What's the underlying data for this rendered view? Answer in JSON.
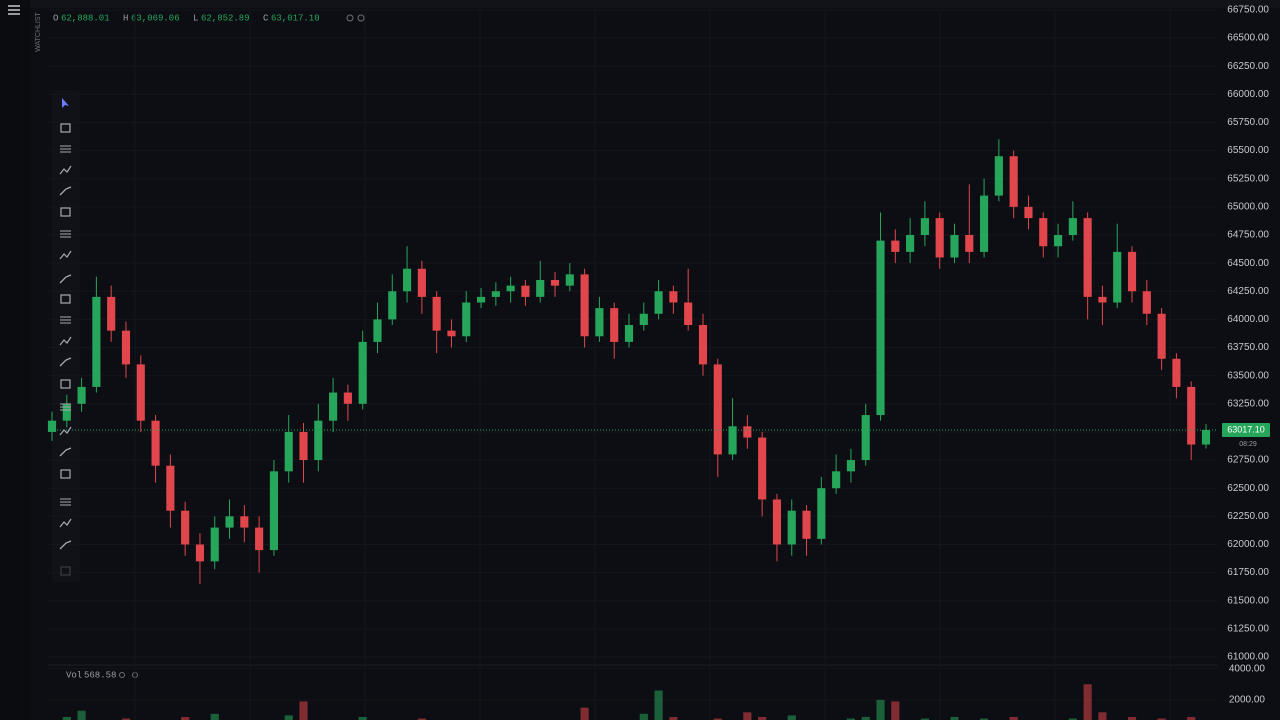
{
  "header": {
    "watchlist": "WATCHLIST",
    "ohlc": [
      {
        "key": "O",
        "value": "62,888.01"
      },
      {
        "key": "H",
        "value": "63,069.06"
      },
      {
        "key": "L",
        "value": "62,852.89"
      },
      {
        "key": "C",
        "value": "63,017.10"
      }
    ],
    "volume_label": "Vol",
    "volume_value": "568.58"
  },
  "chart_data": {
    "type": "candlestick",
    "up_color": "#26a65b",
    "down_color": "#e0464b",
    "grid": true,
    "ylim": [
      60929,
      66838
    ],
    "yticks": [
      {
        "value": 61000,
        "label": "61000.00"
      },
      {
        "value": 61250,
        "label": "61250.00"
      },
      {
        "value": 61500,
        "label": "61500.00"
      },
      {
        "value": 61750,
        "label": "61750.00"
      },
      {
        "value": 62000,
        "label": "62000.00"
      },
      {
        "value": 62250,
        "label": "62250.00"
      },
      {
        "value": 62500,
        "label": "62500.00"
      },
      {
        "value": 62750,
        "label": "62750.00"
      },
      {
        "value": 63000,
        "label": "63000.00"
      },
      {
        "value": 63250,
        "label": "63250.00"
      },
      {
        "value": 63500,
        "label": "63500.00"
      },
      {
        "value": 63750,
        "label": "63750.00"
      },
      {
        "value": 64000,
        "label": "64000.00"
      },
      {
        "value": 64250,
        "label": "64250.00"
      },
      {
        "value": 64500,
        "label": "64500.00"
      },
      {
        "value": 64750,
        "label": "64750.00"
      },
      {
        "value": 65000,
        "label": "65000.00"
      },
      {
        "value": 65250,
        "label": "65250.00"
      },
      {
        "value": 65500,
        "label": "65500.00"
      },
      {
        "value": 65750,
        "label": "65750.00"
      },
      {
        "value": 66000,
        "label": "66000.00"
      },
      {
        "value": 66250,
        "label": "66250.00"
      },
      {
        "value": 66500,
        "label": "66500.00"
      },
      {
        "value": 66750,
        "label": "66750.00"
      }
    ],
    "last_price": {
      "value": 63017.1,
      "label": "63017.10",
      "countdown": "08:29"
    },
    "open": [
      63000,
      63100,
      63250,
      63400,
      64200,
      63900,
      63600,
      63100,
      62700,
      62300,
      62000,
      61850,
      62150,
      62250,
      62150,
      61950,
      62650,
      63000,
      62750,
      63100,
      63350,
      63250,
      63800,
      64000,
      64250,
      64450,
      64200,
      63900,
      63850,
      64150,
      64200,
      64250,
      64300,
      64200,
      64350,
      64300,
      64400,
      63850,
      64100,
      63800,
      63950,
      64050,
      64250,
      64150,
      63950,
      63600,
      62800,
      63050,
      62950,
      62400,
      62000,
      62300,
      62050,
      62500,
      62650,
      62750,
      63150,
      64700,
      64600,
      64750,
      64900,
      64550,
      64750,
      64600,
      65100,
      65450,
      65000,
      64900,
      64650,
      64750,
      64900,
      64200,
      64150,
      64600,
      64250,
      64050,
      63650,
      63400,
      62888.01
    ],
    "high": [
      63180,
      63330,
      63480,
      64380,
      64300,
      63980,
      63680,
      63150,
      62800,
      62380,
      62100,
      62250,
      62400,
      62350,
      62250,
      62750,
      63150,
      63080,
      63250,
      63480,
      63420,
      63900,
      64150,
      64400,
      64650,
      64520,
      64250,
      64000,
      64250,
      64280,
      64330,
      64380,
      64350,
      64520,
      64420,
      64500,
      64450,
      64200,
      64150,
      64050,
      64150,
      64350,
      64300,
      64450,
      64050,
      63650,
      63300,
      63150,
      63000,
      62450,
      62400,
      62350,
      62600,
      62800,
      62850,
      63250,
      64950,
      64800,
      64900,
      65050,
      64950,
      64850,
      65200,
      65250,
      65600,
      65500,
      65100,
      64950,
      64850,
      65050,
      64950,
      64300,
      64850,
      64650,
      64350,
      64100,
      63700,
      63450,
      63069.06
    ],
    "low": [
      62920,
      63040,
      63180,
      63350,
      63800,
      63480,
      63000,
      62550,
      62150,
      61900,
      61650,
      61780,
      62050,
      62020,
      61750,
      61900,
      62550,
      62550,
      62650,
      63000,
      63100,
      63200,
      63700,
      63950,
      64150,
      64050,
      63700,
      63750,
      63800,
      64100,
      64120,
      64150,
      64120,
      64150,
      64200,
      64250,
      63750,
      63800,
      63650,
      63750,
      63900,
      64000,
      64050,
      63900,
      63500,
      62600,
      62750,
      62850,
      62250,
      61850,
      61900,
      61900,
      62000,
      62450,
      62550,
      62700,
      63100,
      64500,
      64500,
      64650,
      64450,
      64500,
      64500,
      64550,
      65050,
      64900,
      64800,
      64550,
      64550,
      64700,
      64000,
      63950,
      64100,
      64150,
      63950,
      63550,
      63300,
      62750,
      62852.89
    ],
    "close": [
      63100,
      63250,
      63400,
      64200,
      63900,
      63600,
      63100,
      62700,
      62300,
      62000,
      61850,
      62150,
      62250,
      62150,
      61950,
      62650,
      63000,
      62750,
      63100,
      63350,
      63250,
      63800,
      64000,
      64250,
      64450,
      64200,
      63900,
      63850,
      64150,
      64200,
      64250,
      64300,
      64200,
      64350,
      64300,
      64400,
      63850,
      64100,
      63800,
      63950,
      64050,
      64250,
      64150,
      63950,
      63600,
      62800,
      63050,
      62950,
      62400,
      62000,
      62300,
      62050,
      62500,
      62650,
      62750,
      63150,
      64700,
      64600,
      64750,
      64900,
      64550,
      64750,
      64600,
      65100,
      65450,
      65000,
      64900,
      64650,
      64750,
      64900,
      64200,
      64150,
      64600,
      64250,
      64050,
      63650,
      63400,
      62888.01,
      63017.1
    ],
    "volume": [
      500,
      900,
      1300,
      700,
      600,
      800,
      500,
      400,
      600,
      900,
      700,
      1100,
      500,
      600,
      700,
      500,
      1000,
      1900,
      600,
      500,
      700,
      900,
      600,
      700,
      500,
      800,
      600,
      400,
      500,
      600,
      500,
      400,
      600,
      500,
      400,
      700,
      1500,
      600,
      500,
      700,
      1100,
      2600,
      900,
      500,
      600,
      800,
      700,
      1200,
      900,
      600,
      1000,
      700,
      600,
      500,
      800,
      900,
      2000,
      1900,
      700,
      800,
      600,
      900,
      700,
      800,
      600,
      900,
      500,
      700,
      600,
      800,
      3000,
      1200,
      600,
      900,
      700,
      800,
      600,
      900,
      568.58
    ],
    "volume_ylim": [
      0,
      4300
    ],
    "volume_yticks": [
      {
        "value": 2000,
        "label": "2000.00"
      },
      {
        "value": 4000,
        "label": "4000.00"
      }
    ]
  }
}
